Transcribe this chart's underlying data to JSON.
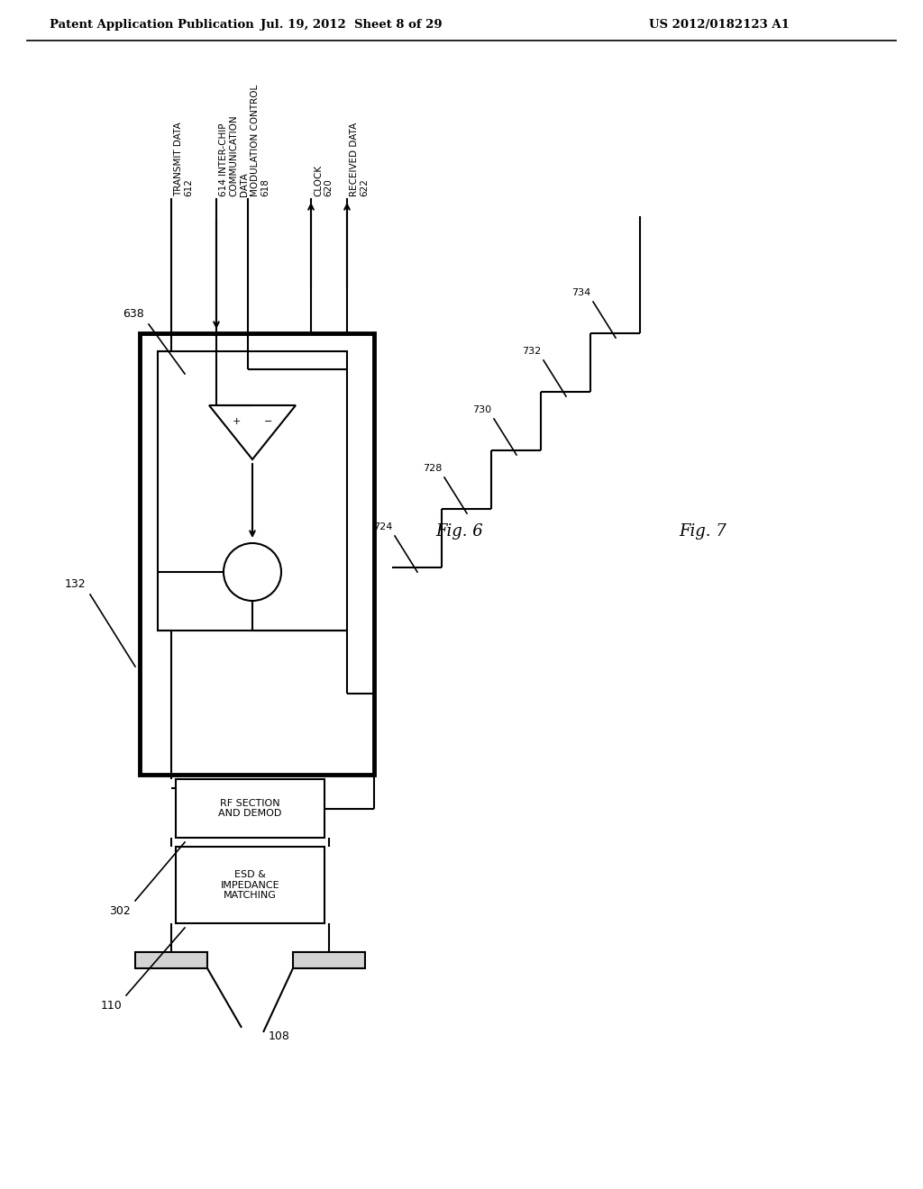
{
  "title_left": "Patent Application Publication",
  "title_mid": "Jul. 19, 2012  Sheet 8 of 29",
  "title_right": "US 2012/0182123 A1",
  "bg_color": "#ffffff",
  "line_color": "#000000",
  "fig6_label": "Fig. 6",
  "fig7_label": "Fig. 7",
  "labels": {
    "transmit_data": "TRANSMIT DATA",
    "transmit_data_num": "612",
    "inter_chip": "614 INTER-CHIP\nCOMMUNICATION\nDATA",
    "modulation_control": "MODULATION CONTROL",
    "modulation_num": "618",
    "clock": "CLOCK",
    "clock_num": "620",
    "received_data": "RECEIVED DATA",
    "received_num": "622",
    "label_638": "638",
    "label_132": "132",
    "label_302": "302",
    "label_110": "110",
    "label_108": "108",
    "rf_section": "RF SECTION\nAND DEMOD",
    "esd": "ESD &\nIMPEDANCE\nMATCHING"
  }
}
